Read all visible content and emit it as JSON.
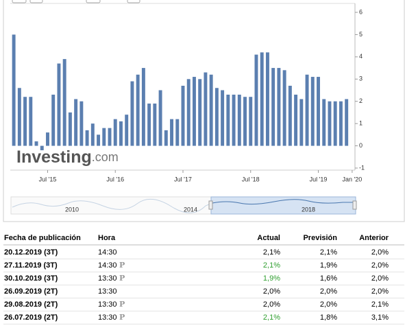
{
  "chart_data": {
    "type": "bar",
    "color": "#5b7fb0",
    "grid": false,
    "values": [
      5.0,
      2.6,
      2.2,
      2.2,
      0.2,
      -0.2,
      0.6,
      2.3,
      3.7,
      3.9,
      1.5,
      2.1,
      2.0,
      0.7,
      1.0,
      0.5,
      0.8,
      0.8,
      1.2,
      1.1,
      1.4,
      2.9,
      3.2,
      3.5,
      1.9,
      1.9,
      2.5,
      0.7,
      1.2,
      1.2,
      2.7,
      3.0,
      3.1,
      3.0,
      3.3,
      3.2,
      2.6,
      2.5,
      2.3,
      2.3,
      2.3,
      2.2,
      2.2,
      4.1,
      4.2,
      4.2,
      3.5,
      3.5,
      3.4,
      2.7,
      2.3,
      2.1,
      3.2,
      3.1,
      3.1,
      2.1,
      2.0,
      2.0,
      2.0,
      2.1
    ],
    "xlim": [
      -0.5,
      60.5
    ],
    "xticks": [
      {
        "value": 6,
        "label": "Jul '15"
      },
      {
        "value": 18,
        "label": "Jul '16"
      },
      {
        "value": 30,
        "label": "Jul '17"
      },
      {
        "value": 42,
        "label": "Jul '18"
      },
      {
        "value": 54,
        "label": "Jul '19"
      },
      {
        "value": 60,
        "label": "Jan '20"
      }
    ],
    "ylim": [
      -1,
      6
    ],
    "yticks": [
      -1,
      0,
      1,
      2,
      3,
      4,
      5,
      6
    ],
    "watermark": [
      "Investing",
      ".com"
    ],
    "navigator_labels": [
      "2010",
      "2014",
      "2018"
    ]
  },
  "table": {
    "header": [
      "Fecha de publicación",
      "Hora",
      "Actual",
      "Previsión",
      "Anterior"
    ],
    "rows": [
      {
        "date": "20.12.2019 (3T)",
        "time": "14:30",
        "actual": "2,1%",
        "forecast": "2,1%",
        "previous": "2,0%",
        "actual_color": "#000000"
      },
      {
        "date": "27.11.2019 (3T)",
        "time": "14:30",
        "icon": "P",
        "actual": "2,1%",
        "forecast": "1,9%",
        "previous": "2,0%",
        "actual_color": "#2e9e2e"
      },
      {
        "date": "30.10.2019 (3T)",
        "time": "13:30",
        "icon": "P",
        "actual": "1,9%",
        "forecast": "1,6%",
        "previous": "2,0%",
        "actual_color": "#2e9e2e"
      },
      {
        "date": "26.09.2019 (2T)",
        "time": "13:30",
        "actual": "2,0%",
        "forecast": "2,0%",
        "previous": "2,0%",
        "actual_color": "#000000"
      },
      {
        "date": "29.08.2019 (2T)",
        "time": "13:30",
        "icon": "P",
        "actual": "2,0%",
        "forecast": "2,0%",
        "previous": "2,1%",
        "actual_color": "#000000"
      },
      {
        "date": "26.07.2019 (2T)",
        "time": "13:30",
        "icon": "P",
        "actual": "2,1%",
        "forecast": "1,8%",
        "previous": "3,1%",
        "actual_color": "#2e9e2e"
      }
    ]
  }
}
